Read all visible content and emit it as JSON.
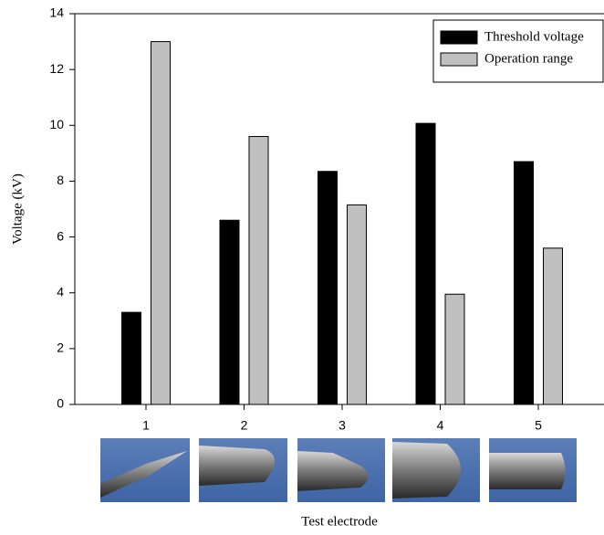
{
  "chart_data": {
    "type": "bar",
    "categories": [
      "1",
      "2",
      "3",
      "4",
      "5"
    ],
    "series": [
      {
        "name": "Threshold voltage",
        "color": "#000000",
        "values": [
          3.3,
          6.6,
          8.35,
          10.07,
          8.7
        ]
      },
      {
        "name": "Operation range",
        "color": "#c0c0c0",
        "values": [
          13.0,
          9.6,
          7.15,
          3.95,
          5.6
        ]
      }
    ],
    "ylim": [
      0,
      14
    ],
    "yticks": [
      0,
      2,
      4,
      6,
      8,
      10,
      12,
      14
    ],
    "x_label": "Test electrode",
    "y_label": "Voltage (kV)",
    "legend": "top-right"
  }
}
